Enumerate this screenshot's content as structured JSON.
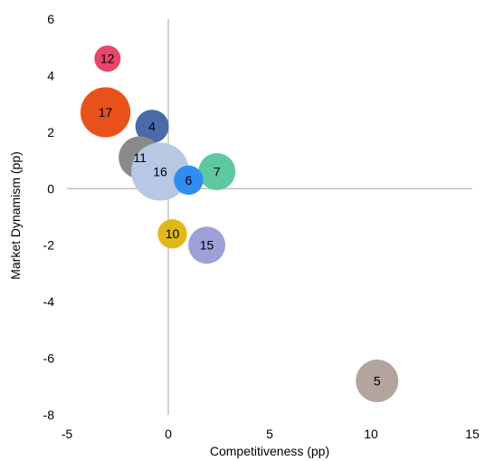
{
  "chart_data": {
    "type": "scatter",
    "variant": "bubble",
    "xlabel": "Competitiveness (pp)",
    "ylabel": "Market Dynamism (pp)",
    "xlim": [
      -5,
      15
    ],
    "ylim": [
      -8,
      6
    ],
    "x_ticks": [
      -5,
      0,
      5,
      10,
      15
    ],
    "y_ticks": [
      -8,
      -6,
      -4,
      -2,
      0,
      2,
      4,
      6
    ],
    "grid": false,
    "legend": "none",
    "points": [
      {
        "label": "12",
        "x": -3.0,
        "y": 4.6,
        "size": 0.8,
        "color": "#e8456b"
      },
      {
        "label": "17",
        "x": -3.1,
        "y": 2.7,
        "size": 2.9,
        "color": "#e8521a"
      },
      {
        "label": "4",
        "x": -0.8,
        "y": 2.2,
        "size": 1.3,
        "color": "#4a6aa8"
      },
      {
        "label": "11",
        "x": -1.4,
        "y": 1.1,
        "size": 2.1,
        "color": "#8a8a8a"
      },
      {
        "label": "16",
        "x": -0.4,
        "y": 0.6,
        "size": 3.9,
        "color": "#b7c7e4"
      },
      {
        "label": "7",
        "x": 2.4,
        "y": 0.6,
        "size": 1.6,
        "color": "#5ec9a0"
      },
      {
        "label": "6",
        "x": 1.0,
        "y": 0.3,
        "size": 1.0,
        "color": "#2f8df2"
      },
      {
        "label": "10",
        "x": 0.2,
        "y": -1.6,
        "size": 1.0,
        "color": "#e0b81c"
      },
      {
        "label": "15",
        "x": 1.9,
        "y": -2.0,
        "size": 1.6,
        "color": "#9ea1d8"
      },
      {
        "label": "5",
        "x": 10.3,
        "y": -6.8,
        "size": 2.1,
        "color": "#b3a49e"
      }
    ]
  }
}
